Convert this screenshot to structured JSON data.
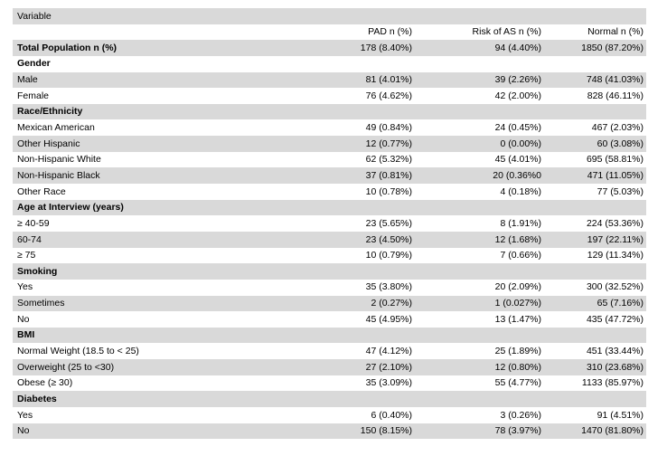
{
  "title": "Variable",
  "columns": [
    "",
    "PAD n (%)",
    "Risk of AS n (%)",
    "Normal n (%)"
  ],
  "rows": [
    {
      "label": "Total Population n (%)",
      "bold": true,
      "values": [
        "178 (8.40%)",
        "94 (4.40%)",
        "1850 (87.20%)"
      ]
    },
    {
      "label": "Gender",
      "bold": true,
      "values": [
        "",
        "",
        ""
      ]
    },
    {
      "label": "Male",
      "bold": false,
      "values": [
        "81 (4.01%)",
        "39 (2.26%)",
        "748 (41.03%)"
      ]
    },
    {
      "label": "Female",
      "bold": false,
      "values": [
        "76 (4.62%)",
        "42 (2.00%)",
        "828 (46.11%)"
      ]
    },
    {
      "label": "Race/Ethnicity",
      "bold": true,
      "values": [
        "",
        "",
        ""
      ]
    },
    {
      "label": "Mexican American",
      "bold": false,
      "values": [
        "49 (0.84%)",
        "24 (0.45%)",
        "467 (2.03%)"
      ]
    },
    {
      "label": "Other Hispanic",
      "bold": false,
      "values": [
        "12 (0.77%)",
        "0 (0.00%)",
        "60 (3.08%)"
      ]
    },
    {
      "label": "Non-Hispanic White",
      "bold": false,
      "values": [
        "62 (5.32%)",
        "45 (4.01%)",
        "695 (58.81%)"
      ]
    },
    {
      "label": "Non-Hispanic Black",
      "bold": false,
      "values": [
        "37 (0.81%)",
        "20 (0.36%0",
        "471 (11.05%)"
      ]
    },
    {
      "label": "Other Race",
      "bold": false,
      "values": [
        "10 (0.78%)",
        "4 (0.18%)",
        "77 (5.03%)"
      ]
    },
    {
      "label": "Age at Interview (years)",
      "bold": true,
      "values": [
        "",
        "",
        ""
      ]
    },
    {
      "label": "≥ 40-59",
      "bold": false,
      "values": [
        "23 (5.65%)",
        "8 (1.91%)",
        "224 (53.36%)"
      ]
    },
    {
      "label": "60-74",
      "bold": false,
      "values": [
        "23 (4.50%)",
        "12 (1.68%)",
        "197 (22.11%)"
      ]
    },
    {
      "label": "≥ 75",
      "bold": false,
      "values": [
        "10 (0.79%)",
        "7 (0.66%)",
        "129 (11.34%)"
      ]
    },
    {
      "label": "Smoking",
      "bold": true,
      "values": [
        "",
        "",
        ""
      ]
    },
    {
      "label": "Yes",
      "bold": false,
      "values": [
        "35 (3.80%)",
        "20 (2.09%)",
        "300 (32.52%)"
      ]
    },
    {
      "label": "Sometimes",
      "bold": false,
      "values": [
        "2 (0.27%)",
        "1 (0.027%)",
        "65 (7.16%)"
      ]
    },
    {
      "label": "No",
      "bold": false,
      "values": [
        "45 (4.95%)",
        "13 (1.47%)",
        "435 (47.72%)"
      ]
    },
    {
      "label": "BMI",
      "bold": true,
      "values": [
        "",
        "",
        ""
      ]
    },
    {
      "label": "Normal Weight (18.5 to < 25)",
      "bold": false,
      "values": [
        "47 (4.12%)",
        "25 (1.89%)",
        "451 (33.44%)"
      ]
    },
    {
      "label": "Overweight (25 to <30)",
      "bold": false,
      "values": [
        "27 (2.10%)",
        "12 (0.80%)",
        "310 (23.68%)"
      ]
    },
    {
      "label": "Obese (≥ 30)",
      "bold": false,
      "values": [
        "35 (3.09%)",
        "55 (4.77%)",
        "1133 (85.97%)"
      ]
    },
    {
      "label": "Diabetes",
      "bold": true,
      "values": [
        "",
        "",
        ""
      ]
    },
    {
      "label": "Yes",
      "bold": false,
      "values": [
        "6 (0.40%)",
        "3 (0.26%)",
        "91 (4.51%)"
      ]
    },
    {
      "label": "No",
      "bold": false,
      "values": [
        "150 (8.15%)",
        "78 (3.97%)",
        "1470 (81.80%)"
      ]
    }
  ]
}
